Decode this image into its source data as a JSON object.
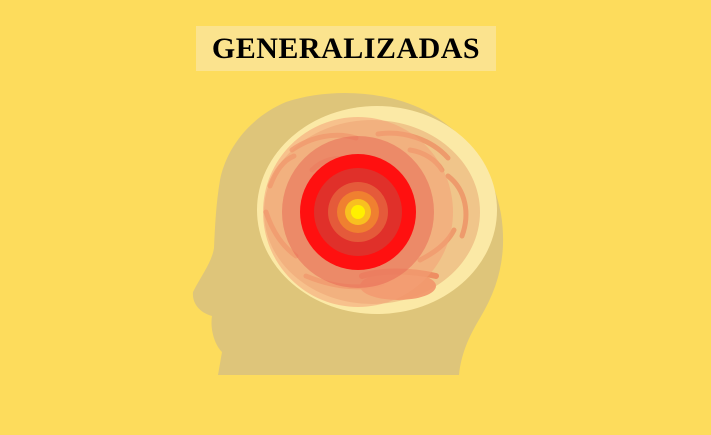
{
  "title": {
    "text": "GENERALIZADAS"
  },
  "illustration": {
    "subject": "head-profile-with-brain-seizure",
    "colors": {
      "background": "#FDDC5C",
      "title_background": "#FBE38E",
      "head": "#DEC57A",
      "brain_halo": "#FBE9A6",
      "brain_tissue": "#F0C58A",
      "brain_folds": "#EE8E62",
      "ring_outer": "#F4A077",
      "ring_mid": "#E86A55",
      "focus_outer": "#FF1010",
      "focus_mid": "#E0302A",
      "focus_inner": "#F08030",
      "focus_glow": "#F8C020",
      "focus_core": "#FFF000"
    }
  }
}
